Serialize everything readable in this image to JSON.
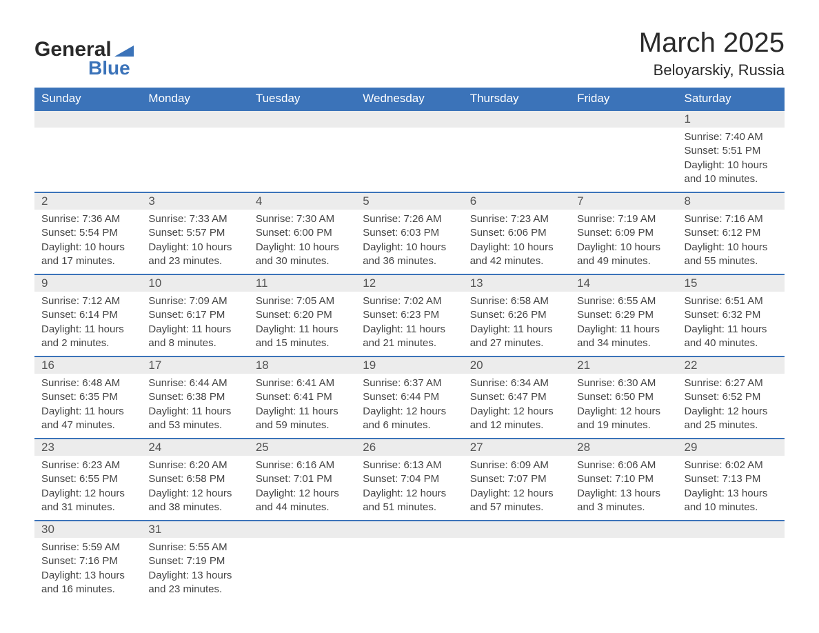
{
  "logo": {
    "general": "General",
    "blue": "Blue"
  },
  "title": "March 2025",
  "location": "Beloyarskiy, Russia",
  "colors": {
    "header_bg": "#3b73b9",
    "header_text": "#ffffff",
    "daynum_bg": "#ececec",
    "border": "#3b73b9",
    "text": "#444444",
    "logo_dark": "#2a2a2a",
    "logo_blue": "#3b73b9"
  },
  "columns": [
    "Sunday",
    "Monday",
    "Tuesday",
    "Wednesday",
    "Thursday",
    "Friday",
    "Saturday"
  ],
  "weeks": [
    [
      {
        "empty": true
      },
      {
        "empty": true
      },
      {
        "empty": true
      },
      {
        "empty": true
      },
      {
        "empty": true
      },
      {
        "empty": true
      },
      {
        "n": "1",
        "sunrise": "Sunrise: 7:40 AM",
        "sunset": "Sunset: 5:51 PM",
        "day1": "Daylight: 10 hours",
        "day2": "and 10 minutes."
      }
    ],
    [
      {
        "n": "2",
        "sunrise": "Sunrise: 7:36 AM",
        "sunset": "Sunset: 5:54 PM",
        "day1": "Daylight: 10 hours",
        "day2": "and 17 minutes."
      },
      {
        "n": "3",
        "sunrise": "Sunrise: 7:33 AM",
        "sunset": "Sunset: 5:57 PM",
        "day1": "Daylight: 10 hours",
        "day2": "and 23 minutes."
      },
      {
        "n": "4",
        "sunrise": "Sunrise: 7:30 AM",
        "sunset": "Sunset: 6:00 PM",
        "day1": "Daylight: 10 hours",
        "day2": "and 30 minutes."
      },
      {
        "n": "5",
        "sunrise": "Sunrise: 7:26 AM",
        "sunset": "Sunset: 6:03 PM",
        "day1": "Daylight: 10 hours",
        "day2": "and 36 minutes."
      },
      {
        "n": "6",
        "sunrise": "Sunrise: 7:23 AM",
        "sunset": "Sunset: 6:06 PM",
        "day1": "Daylight: 10 hours",
        "day2": "and 42 minutes."
      },
      {
        "n": "7",
        "sunrise": "Sunrise: 7:19 AM",
        "sunset": "Sunset: 6:09 PM",
        "day1": "Daylight: 10 hours",
        "day2": "and 49 minutes."
      },
      {
        "n": "8",
        "sunrise": "Sunrise: 7:16 AM",
        "sunset": "Sunset: 6:12 PM",
        "day1": "Daylight: 10 hours",
        "day2": "and 55 minutes."
      }
    ],
    [
      {
        "n": "9",
        "sunrise": "Sunrise: 7:12 AM",
        "sunset": "Sunset: 6:14 PM",
        "day1": "Daylight: 11 hours",
        "day2": "and 2 minutes."
      },
      {
        "n": "10",
        "sunrise": "Sunrise: 7:09 AM",
        "sunset": "Sunset: 6:17 PM",
        "day1": "Daylight: 11 hours",
        "day2": "and 8 minutes."
      },
      {
        "n": "11",
        "sunrise": "Sunrise: 7:05 AM",
        "sunset": "Sunset: 6:20 PM",
        "day1": "Daylight: 11 hours",
        "day2": "and 15 minutes."
      },
      {
        "n": "12",
        "sunrise": "Sunrise: 7:02 AM",
        "sunset": "Sunset: 6:23 PM",
        "day1": "Daylight: 11 hours",
        "day2": "and 21 minutes."
      },
      {
        "n": "13",
        "sunrise": "Sunrise: 6:58 AM",
        "sunset": "Sunset: 6:26 PM",
        "day1": "Daylight: 11 hours",
        "day2": "and 27 minutes."
      },
      {
        "n": "14",
        "sunrise": "Sunrise: 6:55 AM",
        "sunset": "Sunset: 6:29 PM",
        "day1": "Daylight: 11 hours",
        "day2": "and 34 minutes."
      },
      {
        "n": "15",
        "sunrise": "Sunrise: 6:51 AM",
        "sunset": "Sunset: 6:32 PM",
        "day1": "Daylight: 11 hours",
        "day2": "and 40 minutes."
      }
    ],
    [
      {
        "n": "16",
        "sunrise": "Sunrise: 6:48 AM",
        "sunset": "Sunset: 6:35 PM",
        "day1": "Daylight: 11 hours",
        "day2": "and 47 minutes."
      },
      {
        "n": "17",
        "sunrise": "Sunrise: 6:44 AM",
        "sunset": "Sunset: 6:38 PM",
        "day1": "Daylight: 11 hours",
        "day2": "and 53 minutes."
      },
      {
        "n": "18",
        "sunrise": "Sunrise: 6:41 AM",
        "sunset": "Sunset: 6:41 PM",
        "day1": "Daylight: 11 hours",
        "day2": "and 59 minutes."
      },
      {
        "n": "19",
        "sunrise": "Sunrise: 6:37 AM",
        "sunset": "Sunset: 6:44 PM",
        "day1": "Daylight: 12 hours",
        "day2": "and 6 minutes."
      },
      {
        "n": "20",
        "sunrise": "Sunrise: 6:34 AM",
        "sunset": "Sunset: 6:47 PM",
        "day1": "Daylight: 12 hours",
        "day2": "and 12 minutes."
      },
      {
        "n": "21",
        "sunrise": "Sunrise: 6:30 AM",
        "sunset": "Sunset: 6:50 PM",
        "day1": "Daylight: 12 hours",
        "day2": "and 19 minutes."
      },
      {
        "n": "22",
        "sunrise": "Sunrise: 6:27 AM",
        "sunset": "Sunset: 6:52 PM",
        "day1": "Daylight: 12 hours",
        "day2": "and 25 minutes."
      }
    ],
    [
      {
        "n": "23",
        "sunrise": "Sunrise: 6:23 AM",
        "sunset": "Sunset: 6:55 PM",
        "day1": "Daylight: 12 hours",
        "day2": "and 31 minutes."
      },
      {
        "n": "24",
        "sunrise": "Sunrise: 6:20 AM",
        "sunset": "Sunset: 6:58 PM",
        "day1": "Daylight: 12 hours",
        "day2": "and 38 minutes."
      },
      {
        "n": "25",
        "sunrise": "Sunrise: 6:16 AM",
        "sunset": "Sunset: 7:01 PM",
        "day1": "Daylight: 12 hours",
        "day2": "and 44 minutes."
      },
      {
        "n": "26",
        "sunrise": "Sunrise: 6:13 AM",
        "sunset": "Sunset: 7:04 PM",
        "day1": "Daylight: 12 hours",
        "day2": "and 51 minutes."
      },
      {
        "n": "27",
        "sunrise": "Sunrise: 6:09 AM",
        "sunset": "Sunset: 7:07 PM",
        "day1": "Daylight: 12 hours",
        "day2": "and 57 minutes."
      },
      {
        "n": "28",
        "sunrise": "Sunrise: 6:06 AM",
        "sunset": "Sunset: 7:10 PM",
        "day1": "Daylight: 13 hours",
        "day2": "and 3 minutes."
      },
      {
        "n": "29",
        "sunrise": "Sunrise: 6:02 AM",
        "sunset": "Sunset: 7:13 PM",
        "day1": "Daylight: 13 hours",
        "day2": "and 10 minutes."
      }
    ],
    [
      {
        "n": "30",
        "sunrise": "Sunrise: 5:59 AM",
        "sunset": "Sunset: 7:16 PM",
        "day1": "Daylight: 13 hours",
        "day2": "and 16 minutes."
      },
      {
        "n": "31",
        "sunrise": "Sunrise: 5:55 AM",
        "sunset": "Sunset: 7:19 PM",
        "day1": "Daylight: 13 hours",
        "day2": "and 23 minutes."
      },
      {
        "empty": true
      },
      {
        "empty": true
      },
      {
        "empty": true
      },
      {
        "empty": true
      },
      {
        "empty": true
      }
    ]
  ]
}
